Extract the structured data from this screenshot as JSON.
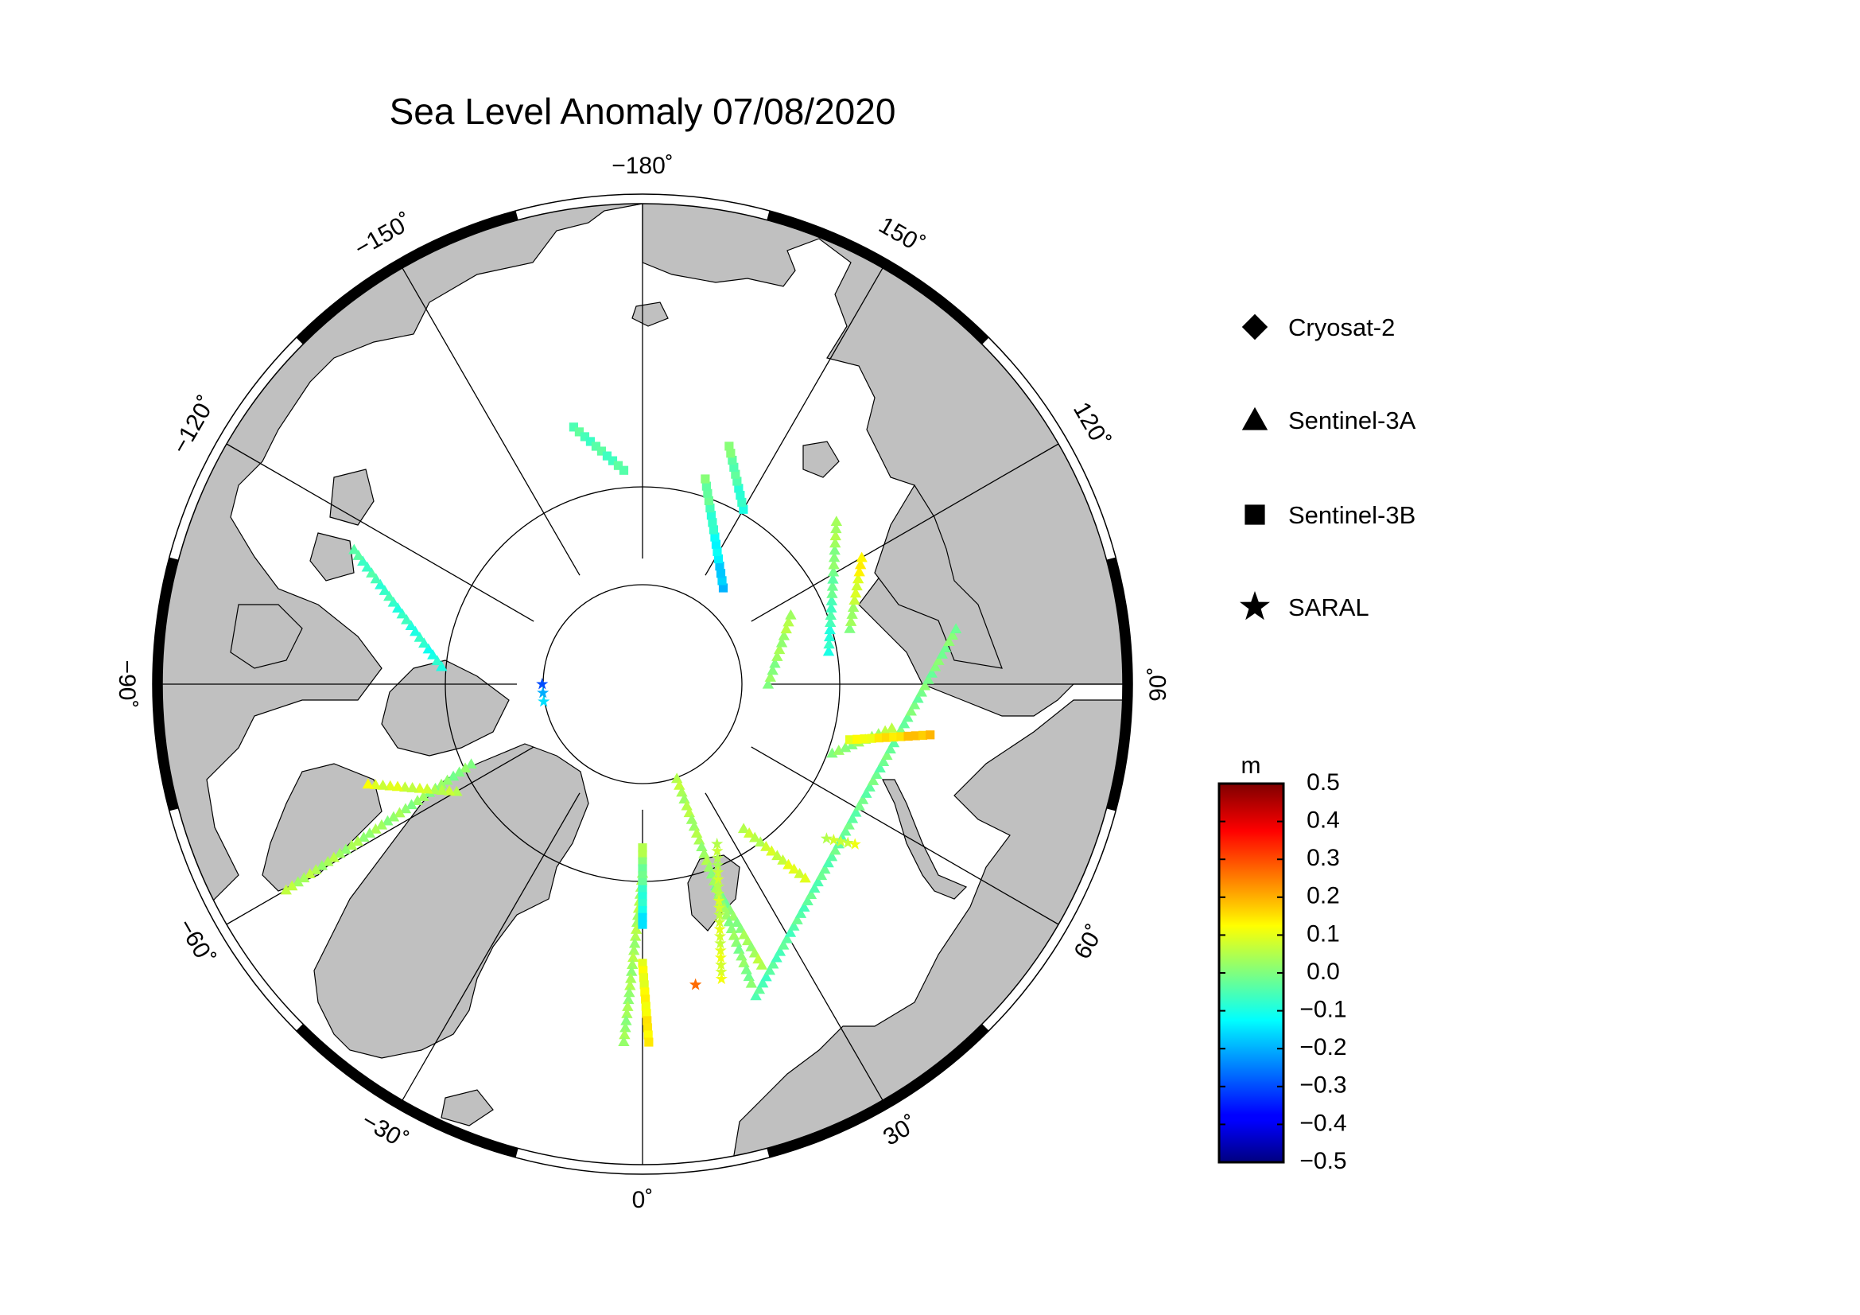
{
  "title": "Sea Level Anomaly 07/08/2020",
  "map": {
    "projection": "north-polar-stereographic",
    "longitude_labels": [
      {
        "lon": 180,
        "text": "−180˚"
      },
      {
        "lon": 150,
        "text": "150˚"
      },
      {
        "lon": 120,
        "text": "120˚"
      },
      {
        "lon": 90,
        "text": "90˚"
      },
      {
        "lon": 60,
        "text": "60˚"
      },
      {
        "lon": 30,
        "text": "30˚"
      },
      {
        "lon": 0,
        "text": "0˚"
      },
      {
        "lon": -30,
        "text": "−30˚"
      },
      {
        "lon": -60,
        "text": "−60˚"
      },
      {
        "lon": -90,
        "text": "−90˚"
      },
      {
        "lon": -120,
        "text": "−120˚"
      },
      {
        "lon": -150,
        "text": "−150˚"
      }
    ],
    "colors": {
      "land": "#c0c0c0",
      "ocean": "#ffffff",
      "grid": "#000000"
    }
  },
  "legend": [
    {
      "name": "Cryosat-2",
      "icon": "diamond-icon"
    },
    {
      "name": "Sentinel-3A",
      "icon": "triangle-icon"
    },
    {
      "name": "Sentinel-3B",
      "icon": "square-icon"
    },
    {
      "name": "SARAL",
      "icon": "star-icon"
    }
  ],
  "colorbar": {
    "unit": "m",
    "min": -0.5,
    "max": 0.5,
    "ticks": [
      "0.5",
      "0.4",
      "0.3",
      "0.2",
      "0.1",
      "0.0",
      "−0.1",
      "−0.2",
      "−0.3",
      "−0.4",
      "−0.5"
    ],
    "colormap": "jet"
  },
  "chart_data": {
    "type": "scatter",
    "value_unit": "m",
    "tracks": [
      {
        "satellite": "Sentinel-3A",
        "from": [
          64,
          20
        ],
        "to": [
          65,
          100
        ],
        "value_start": -0.05,
        "value_end": 0.0
      },
      {
        "satellite": "Sentinel-3A",
        "from": [
          74,
          -95
        ],
        "to": [
          65,
          -115
        ],
        "value_start": -0.1,
        "value_end": -0.05
      },
      {
        "satellite": "Sentinel-3A",
        "from": [
          75,
          100
        ],
        "to": [
          70,
          130
        ],
        "value_start": -0.1,
        "value_end": 0.05
      },
      {
        "satellite": "Sentinel-3A",
        "from": [
          73,
          105
        ],
        "to": [
          70,
          120
        ],
        "value_start": 0.0,
        "value_end": 0.15
      },
      {
        "satellite": "Sentinel-3A",
        "from": [
          80,
          90
        ],
        "to": [
          77,
          115
        ],
        "value_start": 0.0,
        "value_end": 0.05
      },
      {
        "satellite": "Sentinel-3A",
        "from": [
          74,
          70
        ],
        "to": [
          70,
          80
        ],
        "value_start": 0.0,
        "value_end": 0.05
      },
      {
        "satellite": "Sentinel-3A",
        "from": [
          75,
          -65
        ],
        "to": [
          58,
          -60
        ],
        "value_start": 0.0,
        "value_end": 0.05
      },
      {
        "satellite": "Sentinel-3A",
        "from": [
          76,
          35
        ],
        "to": [
          70,
          40
        ],
        "value_start": 0.05,
        "value_end": 0.1
      },
      {
        "satellite": "Sentinel-3A",
        "from": [
          73,
          20
        ],
        "to": [
          66,
          23
        ],
        "value_start": -0.02,
        "value_end": 0.05
      },
      {
        "satellite": "Sentinel-3A",
        "from": [
          82,
          20
        ],
        "to": [
          65,
          20
        ],
        "value_start": 0.05,
        "value_end": 0.0
      },
      {
        "satellite": "Sentinel-3A",
        "from": [
          75,
          0
        ],
        "to": [
          62,
          -3
        ],
        "value_start": 0.05,
        "value_end": 0.02
      },
      {
        "satellite": "Sentinel-3A",
        "from": [
          73,
          -60
        ],
        "to": [
          67,
          -70
        ],
        "value_start": 0.05,
        "value_end": 0.1
      },
      {
        "satellite": "Sentinel-3B",
        "from": [
          73,
          75
        ],
        "to": [
          67,
          80
        ],
        "value_start": 0.1,
        "value_end": 0.2
      },
      {
        "satellite": "Sentinel-3B",
        "from": [
          80,
          140
        ],
        "to": [
          73,
          163
        ],
        "value_start": -0.2,
        "value_end": 0.0
      },
      {
        "satellite": "Sentinel-3B",
        "from": [
          69,
          -165
        ],
        "to": [
          73,
          -175
        ],
        "value_start": -0.05,
        "value_end": -0.05
      },
      {
        "satellite": "Sentinel-3B",
        "from": [
          74,
          150
        ],
        "to": [
          70,
          160
        ],
        "value_start": -0.1,
        "value_end": 0.0
      },
      {
        "satellite": "Sentinel-3B",
        "from": [
          68,
          0
        ],
        "to": [
          62,
          1
        ],
        "value_start": 0.1,
        "value_end": 0.15
      },
      {
        "satellite": "Sentinel-3B",
        "from": [
          77,
          0
        ],
        "to": [
          71,
          0
        ],
        "value_start": 0.05,
        "value_end": -0.15
      },
      {
        "satellite": "SARAL",
        "from": [
          76,
          25
        ],
        "to": [
          66,
          15
        ],
        "value_start": 0.05,
        "value_end": 0.1
      },
      {
        "satellite": "SARAL",
        "from": [
          71,
          50
        ],
        "to": [
          69,
          53
        ],
        "value_start": 0.05,
        "value_end": 0.1
      },
      {
        "satellite": "SARAL",
        "from": [
          82,
          -90
        ],
        "to": [
          82,
          -80
        ],
        "value_start": -0.3,
        "value_end": -0.15
      },
      {
        "satellite": "SARAL",
        "from": [
          66,
          10
        ],
        "to": [
          66,
          10
        ],
        "value_start": 0.25,
        "value_end": 0.25
      }
    ]
  }
}
